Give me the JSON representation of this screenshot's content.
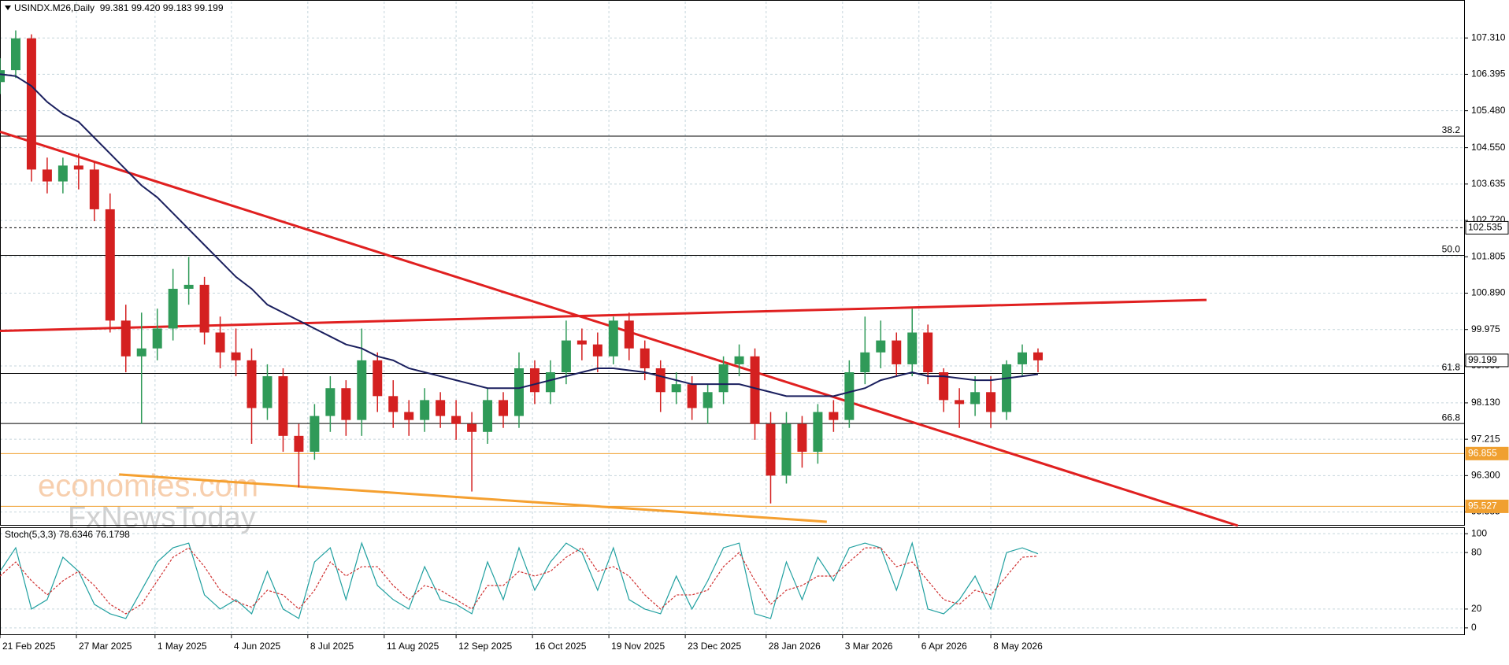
{
  "chart_data": {
    "type": "candlestick",
    "title": "USINDX.M26,Daily  99.381 99.420 99.183 99.199",
    "watermark": [
      "economies.com",
      "FxNewsToday"
    ],
    "x": [
      "2025-02-21",
      "2025-02-28",
      "2025-03-07",
      "2025-03-14",
      "2025-03-21",
      "2025-03-28",
      "2025-04-04",
      "2025-04-11",
      "2025-04-18",
      "2025-04-25",
      "2025-05-02",
      "2025-05-09",
      "2025-05-16",
      "2025-05-23",
      "2025-05-30",
      "2025-06-06",
      "2025-06-13",
      "2025-06-20",
      "2025-06-27",
      "2025-07-04",
      "2025-07-11",
      "2025-07-18",
      "2025-07-25",
      "2025-08-01",
      "2025-08-08",
      "2025-08-15",
      "2025-08-22",
      "2025-08-29",
      "2025-09-05",
      "2025-09-12",
      "2025-09-19",
      "2025-09-26",
      "2025-10-03",
      "2025-10-10",
      "2025-10-17",
      "2025-10-24",
      "2025-10-31",
      "2025-11-07",
      "2025-11-14",
      "2025-11-21",
      "2025-11-28",
      "2025-12-05",
      "2025-12-12",
      "2025-12-19",
      "2025-12-26",
      "2026-01-02",
      "2026-01-09",
      "2026-01-16",
      "2026-01-23",
      "2026-01-30",
      "2026-02-06",
      "2026-02-13",
      "2026-02-20",
      "2026-02-27",
      "2026-03-06",
      "2026-03-13",
      "2026-03-20",
      "2026-03-27",
      "2026-04-03",
      "2026-04-10",
      "2026-04-17",
      "2026-04-24",
      "2026-05-01",
      "2026-05-08",
      "2026-05-15",
      "2026-05-22",
      "2026-05-29"
    ],
    "open": [
      106.2,
      106.5,
      107.3,
      104.0,
      103.7,
      104.1,
      104.0,
      103.0,
      100.2,
      99.3,
      99.5,
      100.0,
      101.0,
      101.1,
      99.9,
      99.4,
      99.2,
      98.0,
      98.8,
      97.3,
      96.9,
      97.8,
      98.5,
      97.7,
      99.2,
      98.3,
      97.9,
      97.7,
      98.2,
      97.8,
      97.6,
      97.4,
      98.2,
      97.8,
      99.0,
      98.4,
      98.9,
      99.7,
      99.6,
      99.3,
      100.2,
      99.5,
      99.0,
      98.4,
      98.6,
      98.0,
      98.4,
      99.1,
      99.3,
      97.6,
      96.3,
      97.6,
      96.9,
      97.9,
      97.7,
      98.9,
      99.4,
      99.7,
      99.1,
      99.9,
      98.9,
      98.2,
      98.1,
      98.4,
      97.9,
      99.1,
      99.4
    ],
    "high": [
      106.8,
      107.5,
      107.4,
      104.3,
      104.3,
      104.4,
      104.2,
      103.4,
      100.6,
      100.4,
      100.5,
      101.5,
      101.8,
      101.3,
      100.3,
      100.0,
      99.5,
      99.1,
      99.0,
      97.6,
      98.1,
      98.8,
      98.7,
      100.0,
      99.4,
      98.7,
      98.2,
      98.5,
      98.4,
      98.2,
      97.9,
      98.5,
      98.4,
      99.4,
      99.2,
      99.2,
      100.2,
      100.0,
      99.9,
      100.3,
      100.4,
      99.7,
      99.2,
      98.9,
      98.8,
      98.6,
      99.3,
      99.6,
      99.5,
      97.9,
      97.9,
      97.8,
      98.1,
      98.2,
      99.2,
      100.3,
      100.2,
      99.9,
      100.5,
      100.1,
      99.0,
      98.5,
      98.8,
      98.8,
      99.2,
      99.6,
      99.5
    ],
    "low": [
      105.9,
      106.3,
      103.7,
      103.4,
      103.4,
      103.5,
      102.7,
      99.9,
      98.9,
      97.6,
      99.2,
      99.7,
      100.6,
      99.6,
      99.0,
      98.8,
      97.1,
      97.7,
      96.9,
      96.0,
      96.7,
      97.4,
      97.3,
      97.3,
      97.9,
      97.5,
      97.3,
      97.4,
      97.5,
      97.2,
      95.9,
      97.1,
      97.5,
      97.5,
      98.1,
      98.1,
      98.6,
      99.2,
      98.9,
      99.1,
      99.2,
      98.7,
      97.9,
      98.1,
      97.7,
      97.6,
      98.1,
      98.8,
      97.2,
      95.6,
      96.1,
      96.5,
      96.6,
      97.4,
      97.5,
      98.6,
      99.0,
      98.8,
      98.8,
      98.6,
      97.9,
      97.5,
      97.8,
      97.5,
      97.7,
      98.8,
      98.9
    ],
    "close": [
      106.5,
      107.3,
      104.0,
      103.7,
      104.1,
      104.0,
      103.0,
      100.2,
      99.3,
      99.5,
      100.0,
      101.0,
      101.1,
      99.9,
      99.4,
      99.2,
      98.0,
      98.8,
      97.3,
      96.9,
      97.8,
      98.5,
      97.7,
      99.2,
      98.3,
      97.9,
      97.7,
      98.2,
      97.8,
      97.6,
      97.4,
      98.2,
      97.8,
      99.0,
      98.4,
      98.9,
      99.7,
      99.6,
      99.3,
      100.2,
      99.5,
      99.0,
      98.4,
      98.6,
      98.0,
      98.4,
      99.1,
      99.3,
      97.6,
      96.3,
      97.6,
      96.9,
      97.9,
      97.7,
      98.9,
      99.4,
      99.7,
      99.1,
      99.9,
      98.9,
      98.2,
      98.1,
      98.4,
      97.9,
      99.1,
      99.4,
      99.2
    ],
    "up_color": "#2f9a58",
    "down_color": "#d42020",
    "ma": {
      "color": "#1a1f5e",
      "values": [
        106.4,
        106.35,
        106.1,
        105.7,
        105.4,
        105.2,
        104.8,
        104.4,
        104.0,
        103.6,
        103.3,
        102.9,
        102.5,
        102.1,
        101.7,
        101.3,
        101.0,
        100.6,
        100.4,
        100.2,
        100.0,
        99.8,
        99.6,
        99.5,
        99.3,
        99.2,
        99.0,
        98.9,
        98.8,
        98.7,
        98.6,
        98.5,
        98.5,
        98.5,
        98.6,
        98.7,
        98.8,
        98.9,
        99.0,
        99.0,
        98.95,
        98.9,
        98.8,
        98.7,
        98.6,
        98.6,
        98.6,
        98.6,
        98.5,
        98.4,
        98.3,
        98.3,
        98.3,
        98.3,
        98.4,
        98.5,
        98.7,
        98.8,
        98.9,
        98.8,
        98.8,
        98.75,
        98.7,
        98.7,
        98.75,
        98.8,
        98.85
      ]
    },
    "xlim": [
      "2025-02-21",
      "2026-12-05"
    ],
    "xticks": [
      {
        "value": "2025-02-21",
        "label": "21 Feb 2025"
      },
      {
        "value": "2025-03-27",
        "label": "27 Mar 2025"
      },
      {
        "value": "2025-05-01",
        "label": "1 May 2025"
      },
      {
        "value": "2025-06-04",
        "label": "4 Jun 2025"
      },
      {
        "value": "2025-07-08",
        "label": "8 Jul 2025"
      },
      {
        "value": "2025-08-11",
        "label": "11 Aug 2025"
      },
      {
        "value": "2025-09-12",
        "label": "12 Sep 2025"
      },
      {
        "value": "2025-10-16",
        "label": "16 Oct 2025"
      },
      {
        "value": "2025-11-19",
        "label": "19 Nov 2025"
      },
      {
        "value": "2025-12-23",
        "label": "23 Dec 2025"
      },
      {
        "value": "2026-01-28",
        "label": "28 Jan 2026"
      },
      {
        "value": "2026-03-03",
        "label": "3 Mar 2026"
      },
      {
        "value": "2026-04-06",
        "label": "6 Apr 2026"
      },
      {
        "value": "2026-05-08",
        "label": "8 May 2026"
      }
    ],
    "ylim": [
      95.04,
      108.225
    ],
    "yticks": [
      {
        "value": 107.31,
        "label": "107.310"
      },
      106.395,
      {
        "value": 105.48,
        "label": "105.480"
      },
      {
        "value": 104.55,
        "label": "104.550"
      },
      103.635,
      {
        "value": 102.72,
        "label": "102.720"
      },
      101.805,
      {
        "value": 100.89,
        "label": "100.890"
      },
      99.975,
      {
        "value": 99.06,
        "label": "99.060"
      },
      {
        "value": 98.13,
        "label": "98.130"
      },
      97.215,
      {
        "value": 96.3,
        "label": "96.300"
      },
      95.385
    ],
    "grid": true,
    "fib_levels": [
      {
        "price": 104.84,
        "label": "38.2"
      },
      {
        "price": 101.84,
        "label": "50.0"
      },
      {
        "price": 98.87,
        "label": "61.8"
      },
      {
        "price": 97.61,
        "label": "66.8"
      }
    ],
    "price_levels": [
      {
        "price": 102.535,
        "color": "#000000",
        "dashed": true
      },
      {
        "price": 96.855,
        "color": "#f0a030",
        "dashed": false
      },
      {
        "price": 95.527,
        "color": "#f0a030",
        "dashed": false
      }
    ],
    "last_price": 99.199,
    "trendlines": [
      {
        "x": [
          "2025-02-21",
          "2026-08-26"
        ],
        "y": [
          104.95,
          95.04
        ],
        "color": "#e02020"
      },
      {
        "x": [
          "2025-02-21",
          "2026-08-12"
        ],
        "y": [
          99.94,
          100.72
        ],
        "color": "#e02020"
      },
      {
        "x": [
          "2025-04-15",
          "2026-02-24"
        ],
        "y": [
          96.33,
          95.14
        ],
        "color": "#f5a030"
      }
    ],
    "stochastic": {
      "title": "Stoch(5,3,3) 78.6346 76.1798",
      "main": {
        "color": "#20a0a0",
        "values": [
          60,
          85,
          20,
          30,
          75,
          60,
          25,
          15,
          10,
          40,
          70,
          85,
          90,
          35,
          20,
          30,
          15,
          60,
          20,
          10,
          70,
          85,
          30,
          90,
          45,
          30,
          20,
          65,
          30,
          25,
          15,
          70,
          30,
          85,
          40,
          70,
          90,
          80,
          40,
          85,
          30,
          20,
          15,
          55,
          20,
          50,
          85,
          90,
          15,
          10,
          70,
          30,
          75,
          50,
          85,
          90,
          85,
          40,
          90,
          20,
          15,
          30,
          55,
          20,
          80,
          85,
          78.6346
        ]
      },
      "signal": {
        "color": "#d03030",
        "values": [
          55,
          70,
          50,
          35,
          50,
          60,
          45,
          25,
          15,
          25,
          50,
          75,
          85,
          65,
          40,
          28,
          22,
          40,
          35,
          20,
          40,
          70,
          55,
          65,
          65,
          45,
          30,
          45,
          40,
          30,
          20,
          45,
          45,
          60,
          55,
          60,
          75,
          85,
          60,
          65,
          55,
          35,
          20,
          35,
          35,
          40,
          65,
          80,
          50,
          25,
          40,
          45,
          55,
          55,
          70,
          85,
          85,
          65,
          70,
          50,
          30,
          25,
          40,
          35,
          55,
          75,
          76.1798
        ]
      },
      "ylim": [
        -6.8,
        106.8
      ],
      "yticks": [
        100,
        80,
        20,
        0
      ]
    }
  }
}
